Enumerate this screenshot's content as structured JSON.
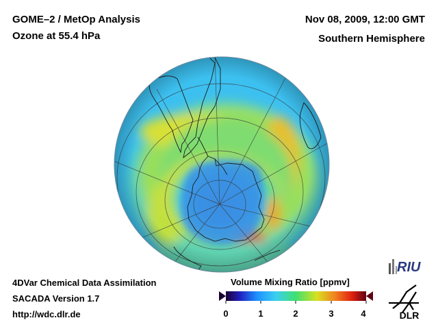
{
  "header": {
    "title_line1": "GOME–2 / MetOp Analysis",
    "title_line2": "Ozone at 55.4 hPa",
    "date": "Nov 08, 2009, 12:00 GMT",
    "region": "Southern Hemisphere"
  },
  "footer": {
    "line1": "4DVar Chemical Data Assimilation",
    "line2": "SACADA Version 1.7",
    "line3": "http://wdc.dlr.de"
  },
  "colorbar": {
    "title": "Volume Mixing Ratio [ppmv]",
    "ticks": [
      "0",
      "1",
      "2",
      "3",
      "4"
    ],
    "range": [
      0,
      4
    ],
    "colors": [
      "#1a0033",
      "#2020c0",
      "#1e90ff",
      "#3cd0f0",
      "#40e070",
      "#d8e020",
      "#f08020",
      "#e02010",
      "#600010"
    ]
  },
  "logos": {
    "riu": "RIU",
    "dlr": "DLR"
  },
  "map": {
    "projection": "orthographic, south polar view",
    "colors": {
      "background_field": "#3cc0f0",
      "mid_band": "#60d890",
      "ring_yellow": "#c8e040",
      "ozone_hole": "#3a88e0",
      "hotspot": "#e83020",
      "coastline": "#1a1a1a",
      "graticule": "#3a3a3a"
    }
  }
}
